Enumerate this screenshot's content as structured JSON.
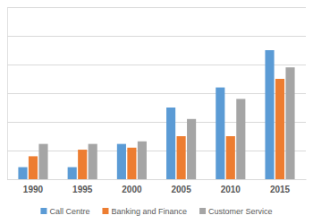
{
  "chart_data": {
    "type": "bar",
    "categories": [
      "1990",
      "1995",
      "2000",
      "2005",
      "2010",
      "2015"
    ],
    "series": [
      {
        "name": "Call Centre",
        "color": "#5b9bd5",
        "values": [
          0.42,
          0.42,
          1.23,
          2.5,
          3.2,
          4.5
        ]
      },
      {
        "name": "Banking and Finance",
        "color": "#ed7d31",
        "values": [
          0.8,
          1.03,
          1.1,
          1.5,
          1.5,
          3.5
        ]
      },
      {
        "name": "Customer Service",
        "color": "#a5a5a5",
        "values": [
          1.23,
          1.23,
          1.32,
          2.1,
          2.8,
          3.9
        ]
      }
    ],
    "ylim": [
      0,
      6
    ],
    "yticks": [
      0,
      1,
      2,
      3,
      4,
      5,
      6
    ],
    "grid": true,
    "legend": "bottom",
    "tick_labels": "x"
  }
}
